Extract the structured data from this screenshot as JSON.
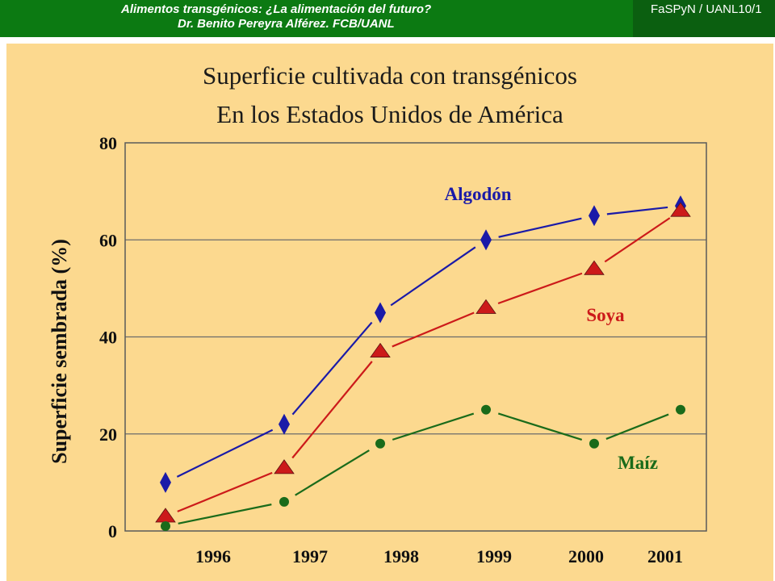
{
  "header": {
    "title_line1": "Alimentos transgénicos: ¿La alimentación del futuro?",
    "title_line2": "Dr. Benito Pereyra Alférez. FCB/UANL",
    "tag": "FaSPyN / UANL10/1"
  },
  "chart_data": {
    "type": "line",
    "title": "Superficie cultivada con transgénicos",
    "subtitle": "En los Estados Unidos de América",
    "xlabel": "",
    "ylabel": "Superficie sembrada  (%)",
    "categories": [
      "1996",
      "1997",
      "1998",
      "1999",
      "2000",
      "2001"
    ],
    "yticks": [
      "0",
      "20",
      "40",
      "60",
      "80"
    ],
    "ylim": [
      0,
      80
    ],
    "grid": "horizontal",
    "series": [
      {
        "name": "Algodón",
        "values": [
          10,
          22,
          45,
          60,
          65,
          67
        ],
        "color": "#1a1aa8",
        "marker": "diamond"
      },
      {
        "name": "Soya",
        "values": [
          3,
          13,
          37,
          46,
          54,
          66
        ],
        "color": "#cc1a1a",
        "marker": "triangle"
      },
      {
        "name": "Maíz",
        "values": [
          1,
          6,
          18,
          25,
          18,
          25
        ],
        "color": "#1a6b1a",
        "marker": "circle"
      }
    ]
  }
}
